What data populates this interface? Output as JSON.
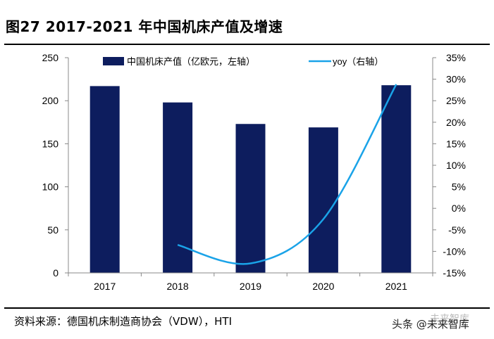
{
  "title": "图27 2017-2021 年中国机床产值及增速",
  "source": "资料来源：德国机床制造商协会（VDW），HTI",
  "watermark": "头条 @未来智库",
  "watermark_faint": "未来智库",
  "chart_data": {
    "type": "bar",
    "categories": [
      "2017",
      "2018",
      "2019",
      "2020",
      "2021"
    ],
    "series": [
      {
        "name": "中国机床产值（亿欧元，左轴）",
        "type": "bar",
        "axis": "left",
        "values": [
          217,
          198,
          173,
          169,
          218
        ],
        "color": "#0d1d5e"
      },
      {
        "name": "yoy（右轴）",
        "type": "line",
        "axis": "right",
        "values": [
          null,
          -8.5,
          -12.8,
          -2.5,
          28.8
        ],
        "color": "#1aa3e8"
      }
    ],
    "left_axis": {
      "min": 0,
      "max": 250,
      "ticks": [
        0,
        50,
        100,
        150,
        200,
        250
      ],
      "tick_labels": [
        "0",
        "50",
        "100",
        "150",
        "200",
        "250"
      ]
    },
    "right_axis": {
      "min": -15,
      "max": 35,
      "ticks": [
        -15,
        -10,
        -5,
        0,
        5,
        10,
        15,
        20,
        25,
        30,
        35
      ],
      "tick_labels": [
        "-15%",
        "-10%",
        "-5%",
        "0%",
        "5%",
        "10%",
        "15%",
        "20%",
        "25%",
        "30%",
        "35%"
      ]
    },
    "legend": {
      "placement": "top"
    },
    "grid": false
  }
}
